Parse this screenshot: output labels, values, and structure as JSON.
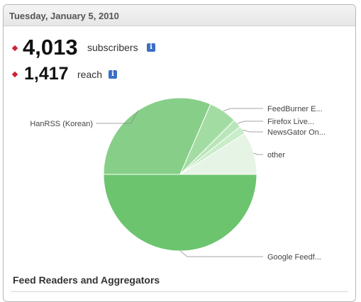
{
  "header": {
    "date": "Tuesday, January 5, 2010"
  },
  "stats": {
    "subscribers": {
      "value": "4,013",
      "label": "subscribers",
      "info_glyph": "i"
    },
    "reach": {
      "value": "1,417",
      "label": "reach",
      "info_glyph": "i"
    }
  },
  "colors": {
    "bullet": "#cc2233",
    "info": "#3b6fc7"
  },
  "chart_data": {
    "type": "pie",
    "labels": [
      "Google Feedf...",
      "HanRSS (Korean)",
      "FeedBurner E...",
      "Firefox Live...",
      "NewsGator On...",
      "other"
    ],
    "values": [
      50.0,
      31.5,
      6.0,
      1.8,
      1.7,
      9.0
    ],
    "colors": [
      "#6cc46f",
      "#87cf88",
      "#a3dca3",
      "#b9e6b9",
      "#c9ecc9",
      "#e6f4e6"
    ]
  },
  "section": {
    "title": "Feed Readers and Aggregators"
  }
}
